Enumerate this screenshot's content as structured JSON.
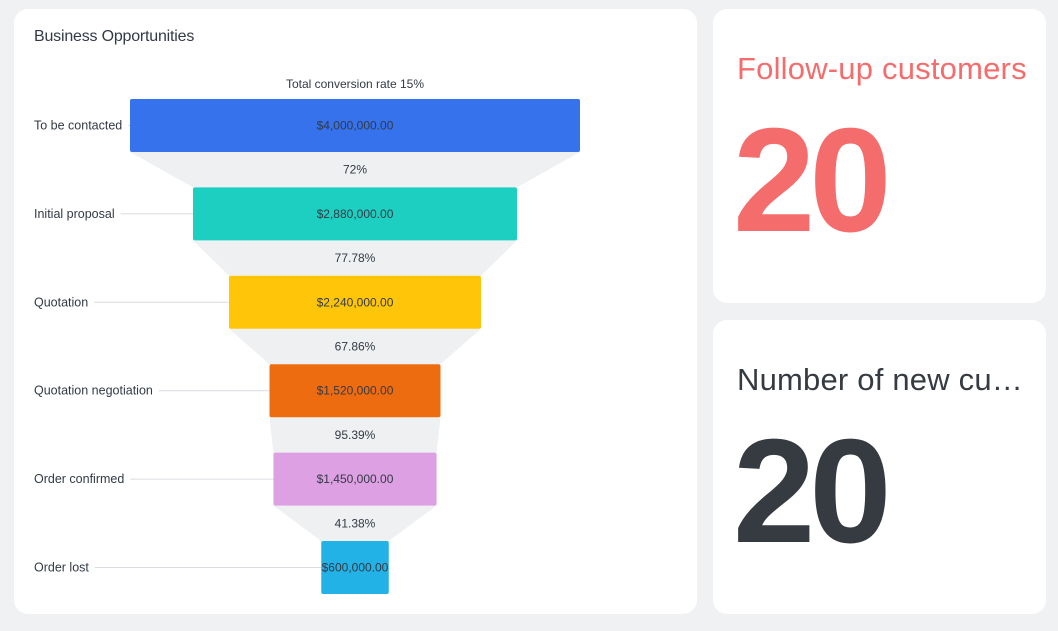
{
  "funnel_card": {
    "title": "Business Opportunities"
  },
  "chart_data": {
    "type": "funnel",
    "title": "Business Opportunities",
    "subtitle": "Total conversion rate 15%",
    "stages": [
      {
        "label": "To be contacted",
        "value": 4000000,
        "value_label": "$4,000,000.00",
        "color": "#3572ec"
      },
      {
        "label": "Initial proposal",
        "value": 2880000,
        "value_label": "$2,880,000.00",
        "color": "#1ccfc1"
      },
      {
        "label": "Quotation",
        "value": 2240000,
        "value_label": "$2,240,000.00",
        "color": "#ffc508"
      },
      {
        "label": "Quotation negotiation",
        "value": 1520000,
        "value_label": "$1,520,000.00",
        "color": "#ee6c10"
      },
      {
        "label": "Order confirmed",
        "value": 1450000,
        "value_label": "$1,450,000.00",
        "color": "#dda0e3"
      },
      {
        "label": "Order lost",
        "value": 600000,
        "value_label": "$600,000.00",
        "color": "#22b2e6"
      }
    ],
    "conversion_rates": [
      "72%",
      "77.78%",
      "67.86%",
      "95.39%",
      "41.38%"
    ]
  },
  "kpi_cards": [
    {
      "title": "Follow-up customers",
      "value": "20",
      "color": "#f56c6c"
    },
    {
      "title": "Number of new customers",
      "value": "20",
      "color": "#363b42"
    }
  ]
}
